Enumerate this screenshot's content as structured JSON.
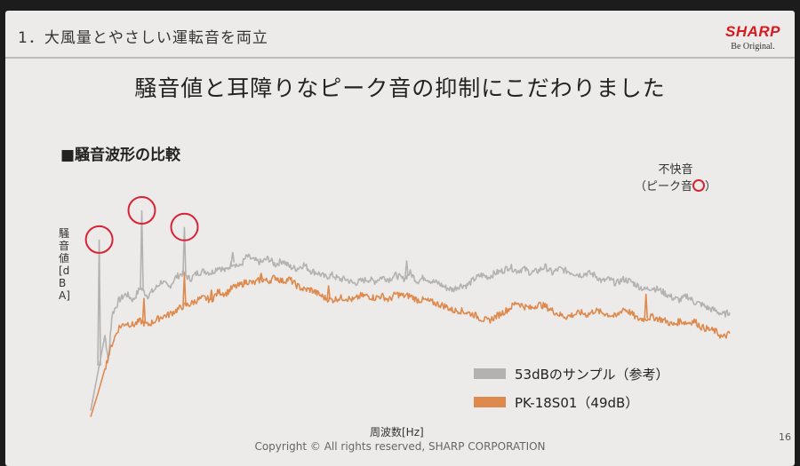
{
  "header": {
    "section_title": "1．大風量とやさしい運転音を両立",
    "logo_word": "SHARP",
    "logo_tagline": "Be Original."
  },
  "main_title": "騒音値と耳障りなピーク音の抑制にこだわりました",
  "subtitle": "■騒音波形の比較",
  "annotation": {
    "line1": "不快音",
    "line2_prefix": "（ピーク音",
    "line2_suffix": "）"
  },
  "footer": {
    "copyright": "Copyright © All rights reserved, SHARP CORPORATION",
    "page_number": "16"
  },
  "chart_data": {
    "type": "line",
    "title": "",
    "xlabel": "周波数[Hz]",
    "ylabel": "騒音値[dBA]",
    "grid": false,
    "legend_placement": "bottom-right",
    "x_ticks": [],
    "y_ticks": [],
    "xlim": [
      0,
      100
    ],
    "ylim": [
      0,
      100
    ],
    "series": [
      {
        "name": "53dBのサンプル（参考）",
        "color": "#b4b2b0",
        "points": [
          [
            0,
            4
          ],
          [
            1,
            22
          ],
          [
            2,
            40
          ],
          [
            2.5,
            28
          ],
          [
            3,
            50
          ],
          [
            4,
            57
          ],
          [
            5,
            60
          ],
          [
            6,
            57
          ],
          [
            7,
            63
          ],
          [
            8,
            59
          ],
          [
            9,
            62
          ],
          [
            10,
            66
          ],
          [
            11,
            63
          ],
          [
            12,
            68
          ],
          [
            13,
            70
          ],
          [
            14,
            67
          ],
          [
            15,
            70
          ],
          [
            16,
            71
          ],
          [
            17,
            70
          ],
          [
            18,
            73
          ],
          [
            19,
            71
          ],
          [
            20,
            75
          ],
          [
            21,
            73
          ],
          [
            22,
            78
          ],
          [
            23,
            76
          ],
          [
            24,
            75
          ],
          [
            25,
            77
          ],
          [
            26,
            74
          ],
          [
            27,
            76
          ],
          [
            28,
            73
          ],
          [
            29,
            72
          ],
          [
            30,
            74
          ],
          [
            31,
            71
          ],
          [
            32,
            70
          ],
          [
            33,
            68
          ],
          [
            34,
            69
          ],
          [
            35,
            67
          ],
          [
            36,
            67
          ],
          [
            37,
            65
          ],
          [
            38,
            66
          ],
          [
            39,
            67
          ],
          [
            40,
            66
          ],
          [
            41,
            68
          ],
          [
            42,
            67
          ],
          [
            43,
            69
          ],
          [
            44,
            67
          ],
          [
            45,
            70
          ],
          [
            46,
            66
          ],
          [
            47,
            68
          ],
          [
            48,
            66
          ],
          [
            49,
            65
          ],
          [
            50,
            63
          ],
          [
            51,
            62
          ],
          [
            52,
            64
          ],
          [
            53,
            64
          ],
          [
            54,
            67
          ],
          [
            55,
            69
          ],
          [
            56,
            68
          ],
          [
            57,
            70
          ],
          [
            58,
            71
          ],
          [
            59,
            73
          ],
          [
            60,
            71
          ],
          [
            61,
            72
          ],
          [
            62,
            70
          ],
          [
            63,
            71
          ],
          [
            64,
            73
          ],
          [
            65,
            70
          ],
          [
            66,
            72
          ],
          [
            67,
            71
          ],
          [
            68,
            70
          ],
          [
            69,
            69
          ],
          [
            70,
            70
          ],
          [
            71,
            69
          ],
          [
            72,
            66
          ],
          [
            73,
            67
          ],
          [
            74,
            65
          ],
          [
            75,
            67
          ],
          [
            76,
            66
          ],
          [
            77,
            64
          ],
          [
            78,
            62
          ],
          [
            79,
            63
          ],
          [
            80,
            62
          ],
          [
            81,
            60
          ],
          [
            82,
            58
          ],
          [
            83,
            57
          ],
          [
            84,
            59
          ],
          [
            85,
            56
          ],
          [
            86,
            55
          ],
          [
            87,
            53
          ],
          [
            88,
            52
          ],
          [
            89,
            50
          ],
          [
            90,
            51
          ]
        ],
        "peaks": [
          [
            1.2,
            86
          ],
          [
            7.2,
            100
          ],
          [
            13.2,
            92
          ],
          [
            20,
            80
          ],
          [
            44.5,
            76
          ]
        ]
      },
      {
        "name": "PK-18S01（49dB）",
        "color": "#de8a4e",
        "points": [
          [
            0,
            1
          ],
          [
            1,
            12
          ],
          [
            2,
            24
          ],
          [
            3,
            36
          ],
          [
            4,
            44
          ],
          [
            5,
            46
          ],
          [
            6,
            45
          ],
          [
            7,
            47
          ],
          [
            8,
            45
          ],
          [
            9,
            47
          ],
          [
            10,
            49
          ],
          [
            11,
            50
          ],
          [
            12,
            52
          ],
          [
            13,
            54
          ],
          [
            14,
            55
          ],
          [
            15,
            57
          ],
          [
            16,
            58
          ],
          [
            17,
            57
          ],
          [
            18,
            61
          ],
          [
            19,
            60
          ],
          [
            20,
            63
          ],
          [
            21,
            64
          ],
          [
            22,
            66
          ],
          [
            23,
            65
          ],
          [
            24,
            67
          ],
          [
            25,
            66
          ],
          [
            26,
            68
          ],
          [
            27,
            66
          ],
          [
            28,
            67
          ],
          [
            29,
            64
          ],
          [
            30,
            62
          ],
          [
            31,
            62
          ],
          [
            32,
            60
          ],
          [
            33,
            58
          ],
          [
            34,
            57
          ],
          [
            35,
            58
          ],
          [
            36,
            58
          ],
          [
            37,
            57
          ],
          [
            38,
            59
          ],
          [
            39,
            59
          ],
          [
            40,
            58
          ],
          [
            41,
            59
          ],
          [
            42,
            57
          ],
          [
            43,
            60
          ],
          [
            44,
            59
          ],
          [
            45,
            59
          ],
          [
            46,
            57
          ],
          [
            47,
            57
          ],
          [
            48,
            56
          ],
          [
            49,
            55
          ],
          [
            50,
            54
          ],
          [
            51,
            52
          ],
          [
            52,
            52
          ],
          [
            53,
            51
          ],
          [
            54,
            50
          ],
          [
            55,
            48
          ],
          [
            56,
            47
          ],
          [
            57,
            49
          ],
          [
            58,
            51
          ],
          [
            59,
            53
          ],
          [
            60,
            56
          ],
          [
            61,
            54
          ],
          [
            62,
            53
          ],
          [
            63,
            55
          ],
          [
            64,
            54
          ],
          [
            65,
            52
          ],
          [
            66,
            50
          ],
          [
            67,
            49
          ],
          [
            68,
            50
          ],
          [
            69,
            51
          ],
          [
            70,
            50
          ],
          [
            71,
            52
          ],
          [
            72,
            51
          ],
          [
            73,
            50
          ],
          [
            74,
            49
          ],
          [
            75,
            53
          ],
          [
            76,
            51
          ],
          [
            77,
            48
          ],
          [
            78,
            48
          ],
          [
            79,
            49
          ],
          [
            80,
            48
          ],
          [
            81,
            47
          ],
          [
            82,
            45
          ],
          [
            83,
            47
          ],
          [
            84,
            46
          ],
          [
            85,
            47
          ],
          [
            86,
            44
          ],
          [
            87,
            43
          ],
          [
            88,
            42
          ],
          [
            89,
            39
          ],
          [
            90,
            41
          ]
        ],
        "peaks": [
          [
            7.5,
            58
          ],
          [
            13.2,
            70
          ],
          [
            17,
            62
          ],
          [
            24,
            70
          ],
          [
            33.5,
            64
          ],
          [
            78.2,
            60
          ]
        ]
      }
    ]
  }
}
